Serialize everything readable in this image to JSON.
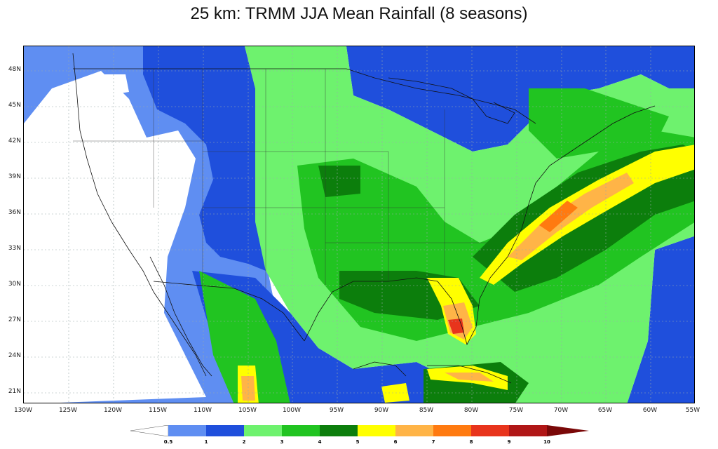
{
  "title": "25 km: TRMM JJA Mean Rainfall (8 seasons)",
  "lat_labels": [
    "48N",
    "45N",
    "42N",
    "39N",
    "36N",
    "33N",
    "30N",
    "27N",
    "24N",
    "21N"
  ],
  "lon_labels": [
    "130W",
    "125W",
    "120W",
    "115W",
    "110W",
    "105W",
    "100W",
    "95W",
    "90W",
    "85W",
    "80W",
    "75W",
    "70W",
    "65W",
    "60W",
    "55W"
  ],
  "colorbar": {
    "ticks": [
      "0.5",
      "1",
      "2",
      "3",
      "4",
      "5",
      "6",
      "7",
      "8",
      "9",
      "10"
    ],
    "colors": [
      "#ffffff",
      "#5f8ef2",
      "#1f4fdc",
      "#6ef26e",
      "#21c421",
      "#0c7e0c",
      "#ffff00",
      "#ffb447",
      "#ff7a10",
      "#e8341c",
      "#b01616",
      "#7a0808"
    ]
  },
  "map": {
    "region": "Contiguous United States, Gulf of Mexico and western Atlantic",
    "lat_range": [
      20,
      50
    ],
    "lon_range": [
      -130,
      -55
    ],
    "variable": "JJA mean rainfall"
  }
}
